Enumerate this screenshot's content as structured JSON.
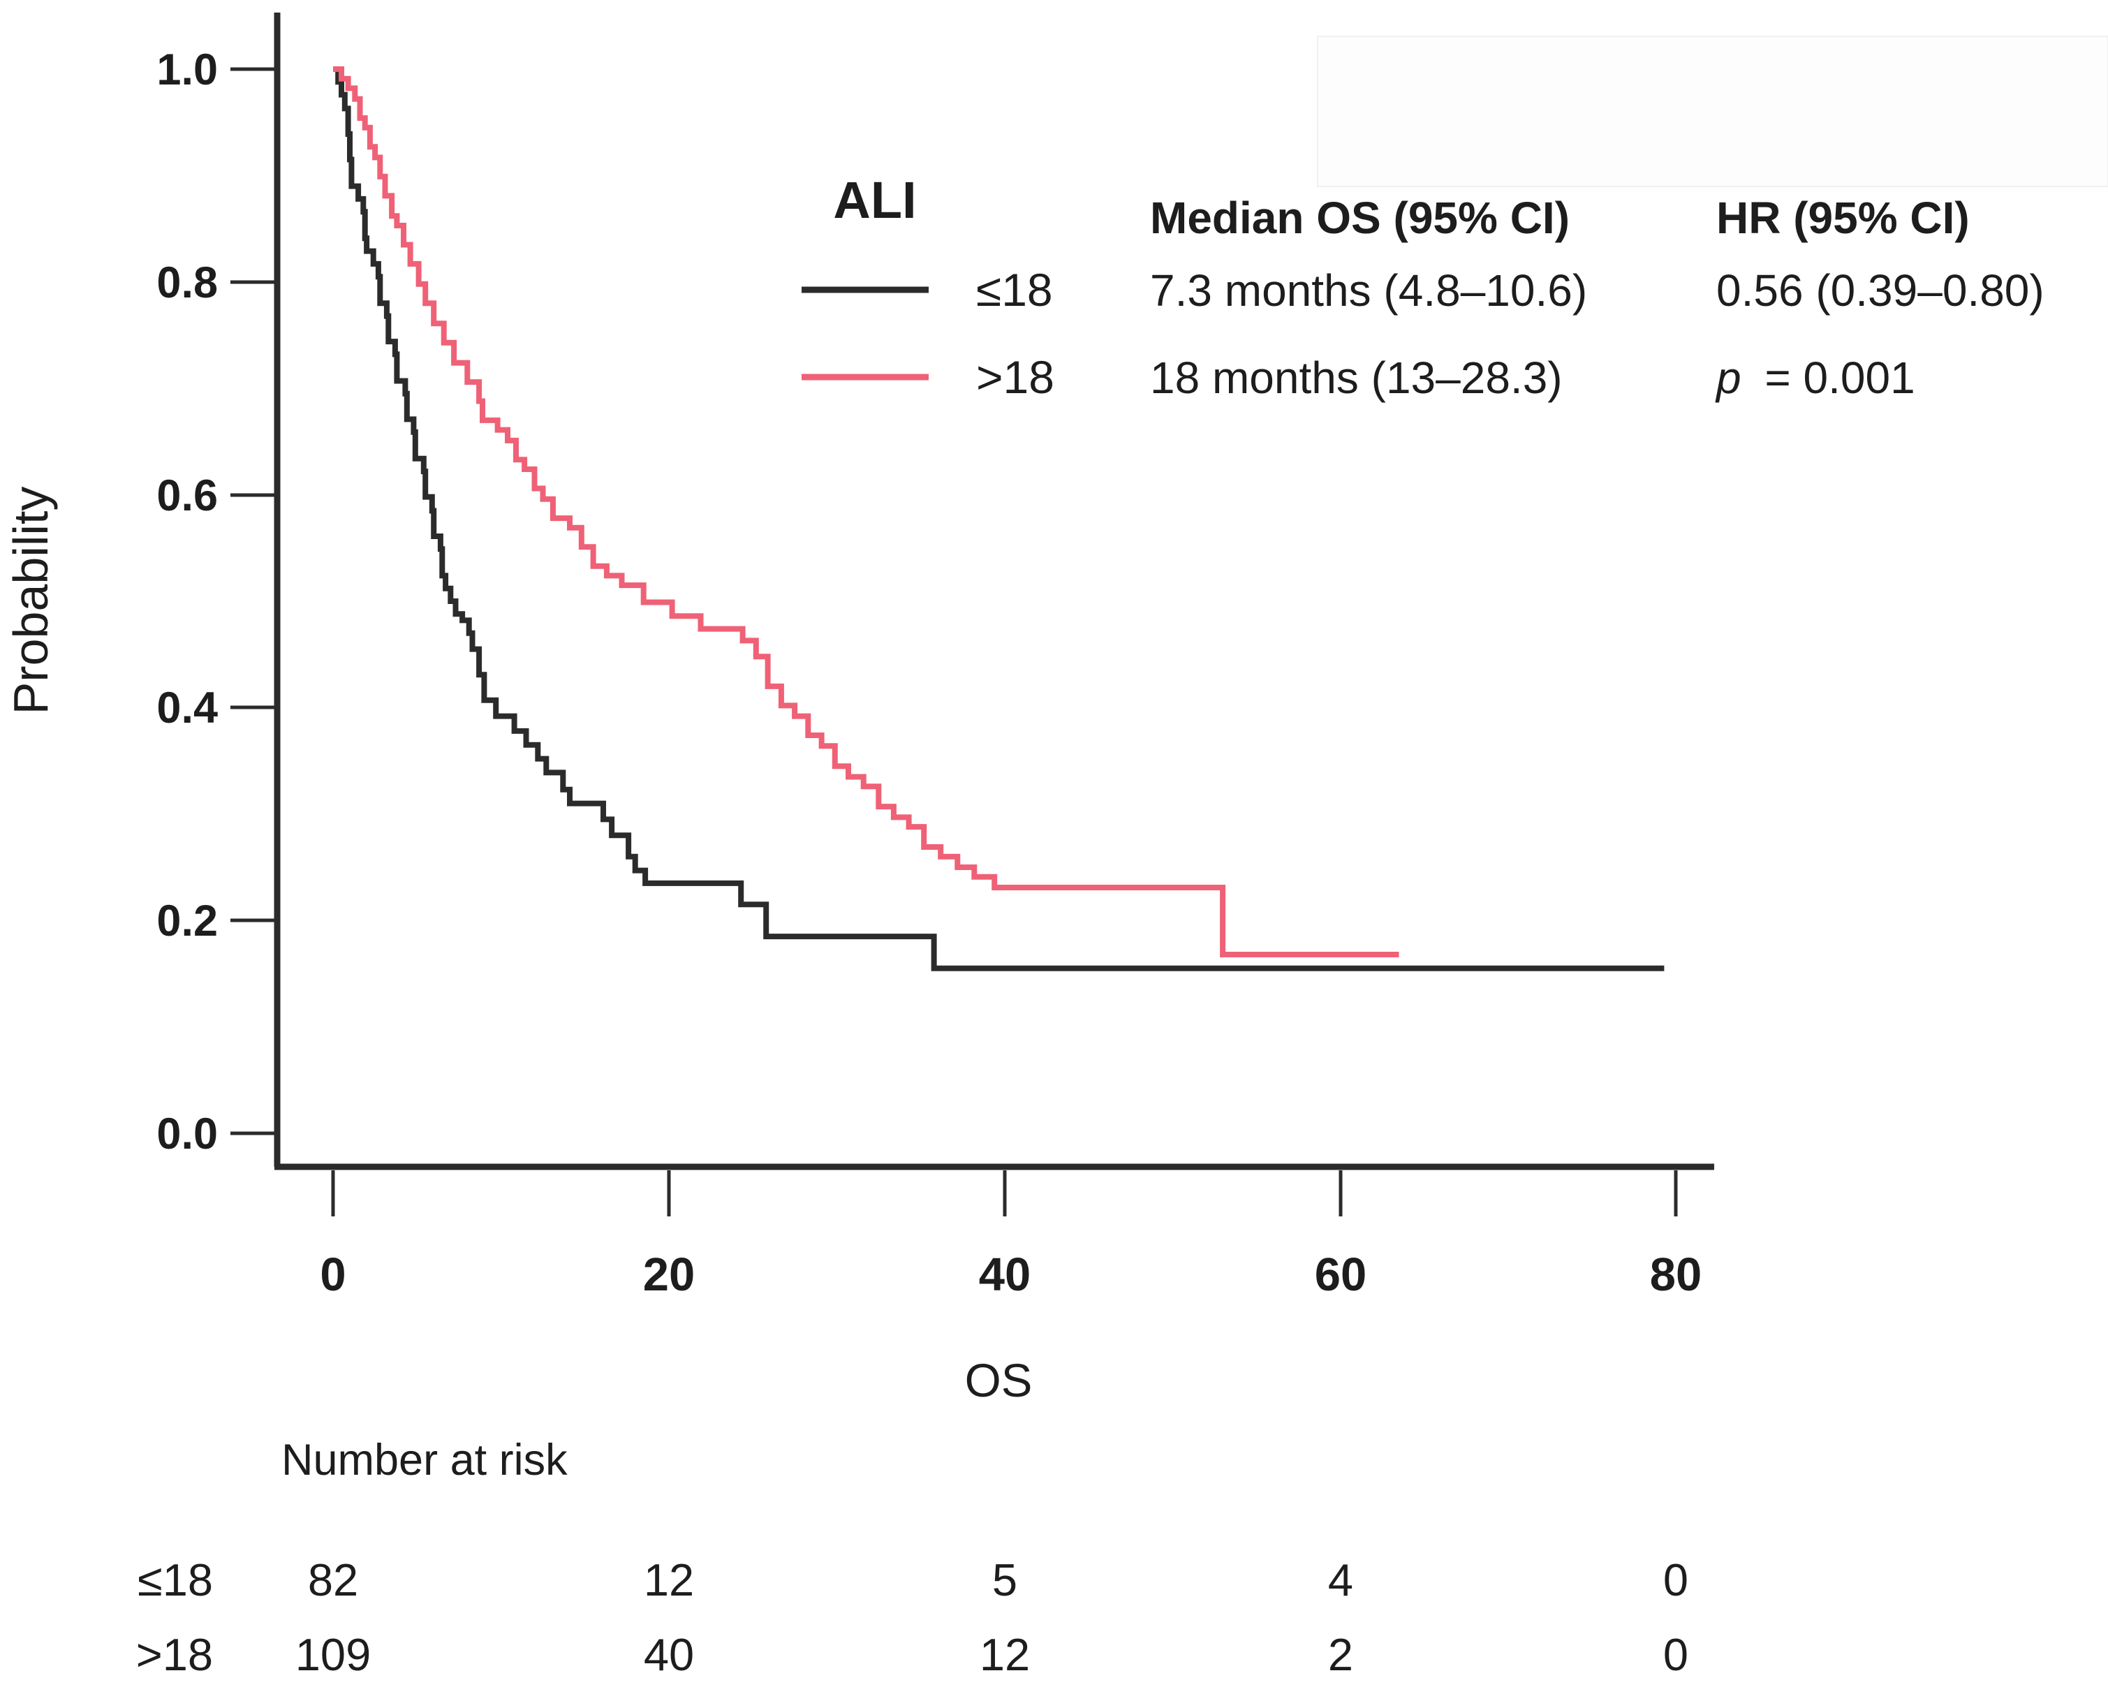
{
  "figure": {
    "y_axis_label": "Probability",
    "x_axis_label": "OS",
    "y_ticks": [
      "1.0",
      "0.8",
      "0.6",
      "0.4",
      "0.2",
      "0.0"
    ],
    "x_ticks": [
      "0",
      "20",
      "40",
      "60",
      "80"
    ]
  },
  "legend": {
    "title": "ALI",
    "col_median_header": "Median OS (95% CI)",
    "col_hr_header": "HR (95% CI)",
    "rows": [
      {
        "group": "≤18",
        "median": "7.3 months (4.8–10.6)",
        "hr": "0.56  (0.39–0.80)",
        "color": "#2b2b2b"
      },
      {
        "group": ">18",
        "median": "18 months (13–28.3)",
        "p_italic": "p",
        "p_rest": "= 0.001",
        "color": "#ef6176"
      }
    ]
  },
  "risk_table": {
    "heading": "Number at risk",
    "rows": [
      {
        "label": "≤18",
        "values": [
          "82",
          "12",
          "5",
          "4",
          "0"
        ]
      },
      {
        "label": ">18",
        "values": [
          "109",
          "40",
          "12",
          "2",
          "0"
        ]
      }
    ]
  },
  "chart_data": {
    "type": "line",
    "subtype": "kaplan-meier-step",
    "title": "",
    "xlabel": "OS",
    "ylabel": "Probability",
    "xlim": [
      0,
      80
    ],
    "ylim": [
      0.0,
      1.0
    ],
    "x_tick_values": [
      0,
      20,
      40,
      60,
      80
    ],
    "y_tick_values": [
      1.0,
      0.8,
      0.6,
      0.4,
      0.2,
      0.0
    ],
    "grid": false,
    "legend_position": "top-right-inside",
    "series": [
      {
        "name": "ALI ≤18",
        "color": "#2b2b2b",
        "median_os": "7.3 months (4.8–10.6)",
        "hr": "0.56 (0.39–0.80)",
        "n_at_risk": [
          82,
          12,
          5,
          4,
          0
        ],
        "end_t": 79.3,
        "points": [
          [
            0,
            1.0
          ],
          [
            0.3,
            0.988
          ],
          [
            0.5,
            0.976
          ],
          [
            0.7,
            0.963
          ],
          [
            0.9,
            0.939
          ],
          [
            1.0,
            0.915
          ],
          [
            1.1,
            0.89
          ],
          [
            1.5,
            0.878
          ],
          [
            1.8,
            0.866
          ],
          [
            1.9,
            0.841
          ],
          [
            2.0,
            0.829
          ],
          [
            2.4,
            0.817
          ],
          [
            2.7,
            0.805
          ],
          [
            2.8,
            0.78
          ],
          [
            3.2,
            0.768
          ],
          [
            3.3,
            0.744
          ],
          [
            3.7,
            0.732
          ],
          [
            3.8,
            0.707
          ],
          [
            4.3,
            0.695
          ],
          [
            4.4,
            0.671
          ],
          [
            4.8,
            0.659
          ],
          [
            4.9,
            0.634
          ],
          [
            5.4,
            0.622
          ],
          [
            5.5,
            0.598
          ],
          [
            5.9,
            0.585
          ],
          [
            6.0,
            0.561
          ],
          [
            6.4,
            0.549
          ],
          [
            6.5,
            0.524
          ],
          [
            6.7,
            0.512
          ],
          [
            7.0,
            0.5
          ],
          [
            7.3,
            0.488
          ],
          [
            7.7,
            0.482
          ],
          [
            8.1,
            0.47
          ],
          [
            8.3,
            0.455
          ],
          [
            8.7,
            0.431
          ],
          [
            9.0,
            0.407
          ],
          [
            9.7,
            0.392
          ],
          [
            10.8,
            0.378
          ],
          [
            11.5,
            0.365
          ],
          [
            12.2,
            0.352
          ],
          [
            12.7,
            0.339
          ],
          [
            13.7,
            0.323
          ],
          [
            14.1,
            0.31
          ],
          [
            16.1,
            0.295
          ],
          [
            16.6,
            0.28
          ],
          [
            17.6,
            0.26
          ],
          [
            18.0,
            0.247
          ],
          [
            18.6,
            0.235
          ],
          [
            24.3,
            0.215
          ],
          [
            25.8,
            0.185
          ],
          [
            35.8,
            0.155
          ]
        ]
      },
      {
        "name": "ALI >18",
        "color": "#ef6176",
        "median_os": "18 months (13–28.3)",
        "p_value": "p = 0.001",
        "n_at_risk": [
          109,
          40,
          12,
          2,
          0
        ],
        "end_t": 63.5,
        "points": [
          [
            0,
            1.0
          ],
          [
            0.5,
            0.991
          ],
          [
            0.9,
            0.982
          ],
          [
            1.3,
            0.972
          ],
          [
            1.6,
            0.954
          ],
          [
            1.9,
            0.945
          ],
          [
            2.2,
            0.927
          ],
          [
            2.5,
            0.917
          ],
          [
            2.8,
            0.899
          ],
          [
            3.1,
            0.881
          ],
          [
            3.5,
            0.862
          ],
          [
            3.8,
            0.853
          ],
          [
            4.2,
            0.835
          ],
          [
            4.6,
            0.817
          ],
          [
            5.1,
            0.798
          ],
          [
            5.5,
            0.78
          ],
          [
            6.0,
            0.761
          ],
          [
            6.6,
            0.743
          ],
          [
            7.2,
            0.724
          ],
          [
            8.0,
            0.706
          ],
          [
            8.7,
            0.688
          ],
          [
            8.9,
            0.67
          ],
          [
            9.8,
            0.661
          ],
          [
            10.4,
            0.651
          ],
          [
            10.9,
            0.633
          ],
          [
            11.4,
            0.624
          ],
          [
            12.0,
            0.606
          ],
          [
            12.5,
            0.596
          ],
          [
            13.1,
            0.578
          ],
          [
            14.1,
            0.569
          ],
          [
            14.8,
            0.551
          ],
          [
            15.5,
            0.533
          ],
          [
            16.3,
            0.524
          ],
          [
            17.2,
            0.515
          ],
          [
            18.5,
            0.499
          ],
          [
            20.2,
            0.486
          ],
          [
            21.9,
            0.474
          ],
          [
            24.4,
            0.463
          ],
          [
            25.2,
            0.448
          ],
          [
            25.9,
            0.42
          ],
          [
            26.7,
            0.402
          ],
          [
            27.5,
            0.392
          ],
          [
            28.3,
            0.374
          ],
          [
            29.1,
            0.364
          ],
          [
            29.9,
            0.345
          ],
          [
            30.7,
            0.335
          ],
          [
            31.6,
            0.326
          ],
          [
            32.5,
            0.307
          ],
          [
            33.4,
            0.297
          ],
          [
            34.3,
            0.288
          ],
          [
            35.2,
            0.269
          ],
          [
            36.2,
            0.26
          ],
          [
            37.2,
            0.25
          ],
          [
            38.2,
            0.241
          ],
          [
            39.4,
            0.231
          ],
          [
            53.0,
            0.168
          ]
        ]
      }
    ]
  }
}
